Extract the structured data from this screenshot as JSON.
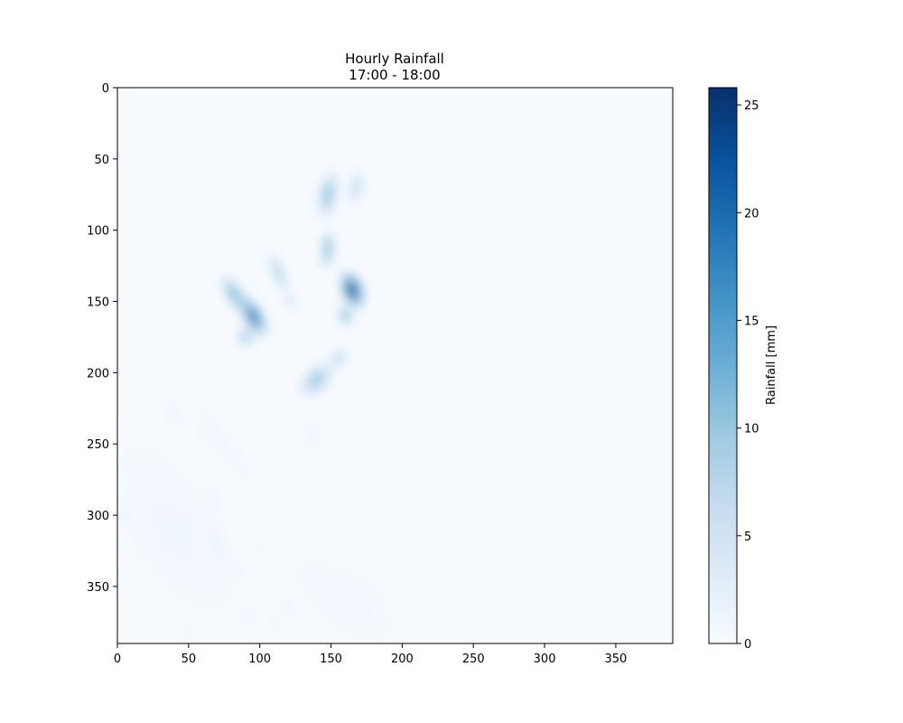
{
  "chart_data": {
    "type": "heatmap",
    "title_lines": [
      "Hourly Rainfall",
      "17:00 - 18:00"
    ],
    "xlabel": "",
    "ylabel": "",
    "xlim": [
      0,
      390
    ],
    "ylim": [
      390,
      0
    ],
    "x_ticks": [
      0,
      50,
      100,
      150,
      200,
      250,
      300,
      350
    ],
    "y_ticks": [
      0,
      50,
      100,
      150,
      200,
      250,
      300,
      350
    ],
    "colormap": "Blues",
    "colorbar": {
      "label": "Rainfall [mm]",
      "range": [
        0,
        25.8
      ],
      "ticks": [
        0,
        5,
        10,
        15,
        20,
        25
      ],
      "colors": [
        "#f7fbff",
        "#deebf7",
        "#c6dbef",
        "#9ecae1",
        "#6baed6",
        "#4292c6",
        "#2171b5",
        "#08519c",
        "#08306b"
      ]
    },
    "rain_cells": [
      {
        "x": 95,
        "y": 160,
        "rx": 9,
        "ry": 22,
        "angle": -30,
        "peak": 22
      },
      {
        "x": 82,
        "y": 145,
        "rx": 8,
        "ry": 20,
        "angle": -30,
        "peak": 14
      },
      {
        "x": 90,
        "y": 175,
        "rx": 7,
        "ry": 10,
        "angle": -30,
        "peak": 12
      },
      {
        "x": 113,
        "y": 130,
        "rx": 6,
        "ry": 22,
        "angle": -20,
        "peak": 10
      },
      {
        "x": 122,
        "y": 150,
        "rx": 5,
        "ry": 10,
        "angle": -20,
        "peak": 7
      },
      {
        "x": 148,
        "y": 75,
        "rx": 9,
        "ry": 24,
        "angle": 10,
        "peak": 12
      },
      {
        "x": 168,
        "y": 70,
        "rx": 7,
        "ry": 18,
        "angle": 10,
        "peak": 8
      },
      {
        "x": 148,
        "y": 112,
        "rx": 6,
        "ry": 16,
        "angle": 0,
        "peak": 15
      },
      {
        "x": 146,
        "y": 122,
        "rx": 3,
        "ry": 5,
        "angle": 0,
        "peak": 18
      },
      {
        "x": 165,
        "y": 142,
        "rx": 10,
        "ry": 18,
        "angle": -20,
        "peak": 25.5
      },
      {
        "x": 160,
        "y": 160,
        "rx": 7,
        "ry": 10,
        "angle": -20,
        "peak": 14
      },
      {
        "x": 140,
        "y": 205,
        "rx": 12,
        "ry": 20,
        "angle": 45,
        "peak": 11
      },
      {
        "x": 155,
        "y": 190,
        "rx": 8,
        "ry": 12,
        "angle": 45,
        "peak": 8
      },
      {
        "x": 138,
        "y": 245,
        "rx": 6,
        "ry": 16,
        "angle": -25,
        "peak": 2
      },
      {
        "x": 40,
        "y": 230,
        "rx": 4,
        "ry": 18,
        "angle": -25,
        "peak": 3
      },
      {
        "x": 30,
        "y": 270,
        "rx": 3,
        "ry": 14,
        "angle": -25,
        "peak": 3
      },
      {
        "x": 5,
        "y": 300,
        "rx": 3,
        "ry": 12,
        "angle": -20,
        "peak": 6
      },
      {
        "x": 18,
        "y": 320,
        "rx": 3,
        "ry": 16,
        "angle": -20,
        "peak": 4
      },
      {
        "x": 35,
        "y": 320,
        "rx": 3,
        "ry": 16,
        "angle": -20,
        "peak": 3
      },
      {
        "x": 50,
        "y": 300,
        "rx": 3,
        "ry": 14,
        "angle": -20,
        "peak": 3
      },
      {
        "x": 68,
        "y": 290,
        "rx": 3,
        "ry": 15,
        "angle": -20,
        "peak": 3
      },
      {
        "x": 70,
        "y": 320,
        "rx": 4,
        "ry": 22,
        "angle": -15,
        "peak": 6
      },
      {
        "x": 85,
        "y": 340,
        "rx": 3,
        "ry": 14,
        "angle": -20,
        "peak": 3
      },
      {
        "x": 92,
        "y": 370,
        "rx": 3,
        "ry": 15,
        "angle": -20,
        "peak": 3
      },
      {
        "x": 100,
        "y": 325,
        "rx": 3,
        "ry": 14,
        "angle": -20,
        "peak": 2
      },
      {
        "x": 120,
        "y": 365,
        "rx": 4,
        "ry": 14,
        "angle": -25,
        "peak": 3
      },
      {
        "x": 135,
        "y": 345,
        "rx": 3,
        "ry": 14,
        "angle": -25,
        "peak": 3
      },
      {
        "x": 110,
        "y": 378,
        "rx": 5,
        "ry": 10,
        "angle": -20,
        "peak": 2
      },
      {
        "x": 48,
        "y": 384,
        "rx": 3,
        "ry": 8,
        "angle": -10,
        "peak": 4
      },
      {
        "x": 25,
        "y": 385,
        "rx": 4,
        "ry": 5,
        "angle": 0,
        "peak": 2
      },
      {
        "x": 70,
        "y": 388,
        "rx": 4,
        "ry": 4,
        "angle": 0,
        "peak": 2
      },
      {
        "x": 5,
        "y": 345,
        "rx": 3,
        "ry": 15,
        "angle": -20,
        "peak": 1.5
      },
      {
        "x": 2,
        "y": 265,
        "rx": 2,
        "ry": 10,
        "angle": -10,
        "peak": 2
      },
      {
        "x": 60,
        "y": 240,
        "rx": 4,
        "ry": 20,
        "angle": -25,
        "peak": 1.5
      },
      {
        "x": 75,
        "y": 250,
        "rx": 7,
        "ry": 55,
        "angle": -35,
        "peak": 1.5
      },
      {
        "x": 40,
        "y": 310,
        "rx": 40,
        "ry": 90,
        "angle": -30,
        "peak": 1.2
      },
      {
        "x": 160,
        "y": 360,
        "rx": 30,
        "ry": 60,
        "angle": -55,
        "peak": 0.9
      }
    ]
  }
}
